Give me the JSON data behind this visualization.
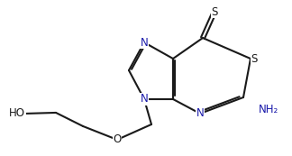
{
  "bg_color": "#ffffff",
  "line_color": "#1a1a1a",
  "n_color": "#1a1aaa",
  "bond_lw": 1.5,
  "font_size": 8.5,
  "figsize": [
    3.24,
    1.73
  ],
  "dpi": 100,
  "xlim": [
    0,
    9
  ],
  "ylim": [
    0,
    4.8
  ]
}
